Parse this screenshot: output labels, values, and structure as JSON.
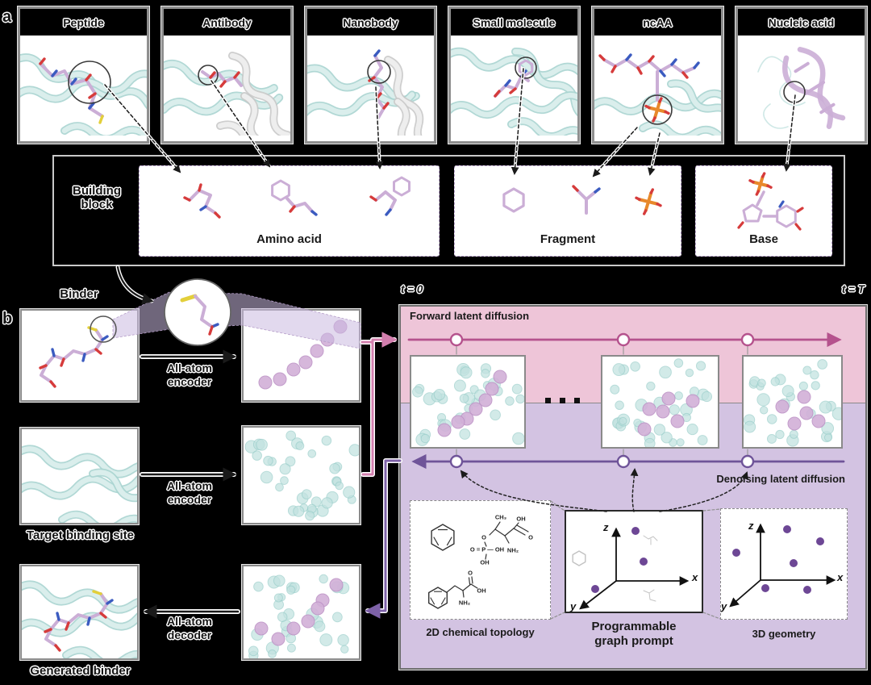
{
  "figure": {
    "panel_a_label": "a",
    "panel_b_label": "b"
  },
  "panel_a": {
    "cards": [
      {
        "label": "Peptide"
      },
      {
        "label": "Antibody"
      },
      {
        "label": "Nanobody"
      },
      {
        "label": "Small molecule"
      },
      {
        "label": "ncAA"
      },
      {
        "label": "Nucleic acid"
      }
    ],
    "building_block": {
      "label": "Building block",
      "groups": [
        {
          "label": "Amino acid"
        },
        {
          "label": "Fragment"
        },
        {
          "label": "Base"
        }
      ]
    }
  },
  "panel_b": {
    "binder_label": "Binder",
    "target_label": "Target binding site",
    "generated_label": "Generated binder",
    "encoder_label": "All-atom encoder",
    "decoder_label": "All-atom decoder",
    "diffusion": {
      "t_start": "t = 0",
      "t_end": "t = T",
      "forward_label": "Forward latent diffusion",
      "denoising_label": "Denoising latent diffusion",
      "topology_label": "2D chemical topology",
      "prompt_label": "Programmable graph prompt",
      "geometry_label": "3D geometry",
      "axes": {
        "x": "x",
        "y": "y",
        "z": "z"
      },
      "chem": {
        "ch3": "CH₃",
        "oh_top": "OH",
        "o_ester": "O",
        "p_row": "O = P — OH",
        "nh2": "NH₂",
        "oh_below": "OH",
        "o_carbonyl": "O",
        "phe_o": "O",
        "phe_oh": "OH",
        "phe_nh2": "NH₂"
      }
    }
  },
  "colors": {
    "forward_band": "#eec5d8",
    "denoise_band": "#d3c3e2",
    "forward_arrow": "#b5528d",
    "denoise_arrow": "#6f5499",
    "pink_connector": "#d37fae",
    "purple_connector": "#7e62a8",
    "teal_dot": "#c2e2e0",
    "purple_dot": "#d2b0d8",
    "prompt_dot": "#6d4795",
    "molecule_purple": "#cbaed6"
  }
}
